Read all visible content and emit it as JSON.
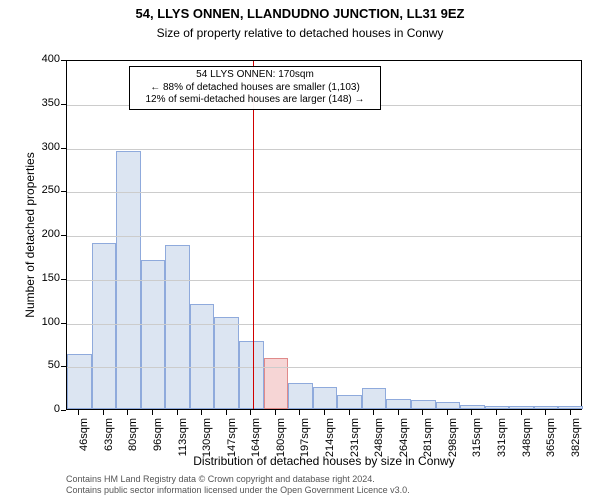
{
  "chart": {
    "type": "histogram",
    "title": "54, LLYS ONNEN, LLANDUDNO JUNCTION, LL31 9EZ",
    "title_fontsize": 13,
    "subtitle": "Size of property relative to detached houses in Conwy",
    "subtitle_fontsize": 12,
    "xlabel": "Distribution of detached houses by size in Conwy",
    "ylabel": "Number of detached properties",
    "label_fontsize": 12,
    "tick_fontsize": 11,
    "background_color": "#ffffff",
    "grid_color": "#cccccc",
    "axis_color": "#000000",
    "bar_fill_normal": "#dce5f2",
    "bar_border_normal": "#8faadc",
    "bar_fill_highlight": "#f6d5d5",
    "bar_border_highlight": "#e08a8a",
    "refline_color": "#d00000",
    "categories": [
      "46sqm",
      "63sqm",
      "80sqm",
      "96sqm",
      "113sqm",
      "130sqm",
      "147sqm",
      "164sqm",
      "180sqm",
      "197sqm",
      "214sqm",
      "231sqm",
      "248sqm",
      "264sqm",
      "281sqm",
      "298sqm",
      "315sqm",
      "331sqm",
      "348sqm",
      "365sqm",
      "382sqm"
    ],
    "values": [
      63,
      190,
      295,
      170,
      188,
      120,
      105,
      78,
      58,
      30,
      25,
      16,
      24,
      12,
      10,
      8,
      5,
      4,
      4,
      4,
      3
    ],
    "highlight_index": 8,
    "ylim": [
      0,
      400
    ],
    "ytick_step": 50,
    "reference_value": 170,
    "x_min": 46,
    "x_max": 390,
    "annotation": {
      "line1": "54 LLYS ONNEN: 170sqm",
      "line2": "← 88% of detached houses are smaller (1,103)",
      "line3": "12% of semi-detached houses are larger (148) →"
    }
  },
  "credits": {
    "line1": "Contains HM Land Registry data © Crown copyright and database right 2024.",
    "line2": "Contains public sector information licensed under the Open Government Licence v3.0."
  }
}
